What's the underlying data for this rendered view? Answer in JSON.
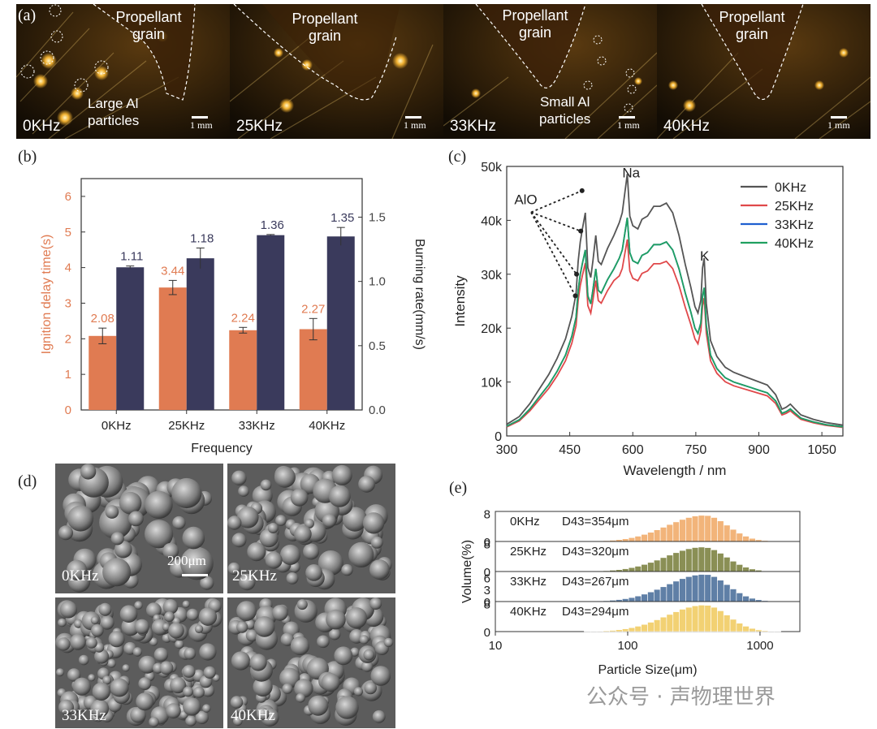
{
  "figure": {
    "panel_a": {
      "label": "(a)",
      "photos": [
        {
          "frequency": "0KHz",
          "grain": "Propellant\ngrain",
          "annotation": "Large Al\nparticles",
          "scale": "1 mm"
        },
        {
          "frequency": "25KHz",
          "grain": "Propellant\ngrain",
          "annotation": "",
          "scale": "1 mm"
        },
        {
          "frequency": "33KHz",
          "grain": "Propellant\ngrain",
          "annotation": "Small Al\nparticles",
          "scale": "1 mm"
        },
        {
          "frequency": "40KHz",
          "grain": "Propellant\ngrain",
          "annotation": "",
          "scale": "1 mm"
        }
      ]
    },
    "panel_d": {
      "label": "(d)",
      "images": [
        {
          "frequency": "0KHz",
          "scale": "200μm"
        },
        {
          "frequency": "25KHz",
          "scale": ""
        },
        {
          "frequency": "33KHz",
          "scale": ""
        },
        {
          "frequency": "40KHz",
          "scale": ""
        }
      ]
    },
    "watermark": {
      "source": "公众号 · 声物理世界"
    },
    "colors": {
      "orange": "#e07b52",
      "navy": "#3a3a5c",
      "gray": "#555555",
      "red": "#e0484a",
      "blue": "#1f5fd0",
      "green": "#20a060"
    }
  },
  "chart_data": [
    {
      "id": "b",
      "label": "(b)",
      "type": "bar",
      "categories": [
        "0KHz",
        "25KHz",
        "33KHz",
        "40KHz"
      ],
      "xlabel": "Frequency",
      "series": [
        {
          "name": "Ignition delay time(s)",
          "axis": "left",
          "color": "#e07b52",
          "values": [
            2.08,
            3.44,
            2.24,
            2.27
          ],
          "errors": [
            0.22,
            0.2,
            0.08,
            0.3
          ],
          "value_labels": [
            "2.08",
            "3.44",
            "2.24",
            "2.27"
          ]
        },
        {
          "name": "Burning rate(mm/s)",
          "axis": "right",
          "color": "#3a3a5c",
          "values": [
            1.11,
            1.18,
            1.36,
            1.35
          ],
          "errors": [
            0.01,
            0.08,
            0.005,
            0.07
          ],
          "value_labels": [
            "1.11",
            "1.18",
            "1.36",
            "1.35"
          ]
        }
      ],
      "ylabel_left": "Ignition delay time(s)",
      "ylim_left": [
        0,
        6.5
      ],
      "yticks_left": [
        "0",
        "1",
        "2",
        "3",
        "4",
        "5",
        "6"
      ],
      "ylabel_right": "Burning rate(mm/s)",
      "ylim_right": [
        0,
        1.8
      ],
      "yticks_right": [
        "0.0",
        "0.5",
        "1.0",
        "1.5"
      ]
    },
    {
      "id": "c",
      "label": "(c)",
      "type": "line",
      "xlabel": "Wavelength / nm",
      "ylabel": "Intensity",
      "xlim": [
        300,
        1100
      ],
      "ylim": [
        0,
        50000
      ],
      "xticks": [
        "300",
        "450",
        "600",
        "750",
        "900",
        "1050"
      ],
      "yticks": [
        "0",
        "10k",
        "20k",
        "30k",
        "40k",
        "50k"
      ],
      "annotations": [
        {
          "text": "AlO",
          "x": 318,
          "y": 43000
        },
        {
          "text": "Na",
          "x": 575,
          "y": 48000
        },
        {
          "text": "K",
          "x": 760,
          "y": 32500
        }
      ],
      "series": [
        {
          "name": "0KHz",
          "color": "#555555",
          "peak_scale": 1.2
        },
        {
          "name": "25KHz",
          "color": "#e0484a",
          "peak_scale": 0.92
        },
        {
          "name": "33KHz",
          "color": "#1f5fd0",
          "peak_scale": 1.0
        },
        {
          "name": "40KHz",
          "color": "#20a060",
          "peak_scale": 1.0
        }
      ],
      "shape_points": [
        [
          300,
          1800
        ],
        [
          330,
          3000
        ],
        [
          355,
          5000
        ],
        [
          380,
          7500
        ],
        [
          400,
          9500
        ],
        [
          420,
          12000
        ],
        [
          440,
          15000
        ],
        [
          455,
          18500
        ],
        [
          465,
          22000
        ],
        [
          470,
          27000
        ],
        [
          475,
          30000
        ],
        [
          480,
          32000
        ],
        [
          487,
          34500
        ],
        [
          493,
          26000
        ],
        [
          500,
          24500
        ],
        [
          505,
          27000
        ],
        [
          512,
          31000
        ],
        [
          518,
          27000
        ],
        [
          525,
          26500
        ],
        [
          540,
          29000
        ],
        [
          555,
          31000
        ],
        [
          568,
          33000
        ],
        [
          575,
          34500
        ],
        [
          582,
          38000
        ],
        [
          587,
          40500
        ],
        [
          593,
          34000
        ],
        [
          600,
          32500
        ],
        [
          612,
          32000
        ],
        [
          622,
          33500
        ],
        [
          635,
          34000
        ],
        [
          650,
          35500
        ],
        [
          665,
          35500
        ],
        [
          680,
          36000
        ],
        [
          695,
          34500
        ],
        [
          710,
          31000
        ],
        [
          725,
          26500
        ],
        [
          738,
          23000
        ],
        [
          748,
          20000
        ],
        [
          755,
          19000
        ],
        [
          762,
          21000
        ],
        [
          766,
          26000
        ],
        [
          770,
          27500
        ],
        [
          775,
          20500
        ],
        [
          785,
          15000
        ],
        [
          800,
          12500
        ],
        [
          820,
          10800
        ],
        [
          840,
          10000
        ],
        [
          860,
          9500
        ],
        [
          880,
          9000
        ],
        [
          900,
          8500
        ],
        [
          920,
          8000
        ],
        [
          940,
          6500
        ],
        [
          955,
          4200
        ],
        [
          965,
          4500
        ],
        [
          975,
          5000
        ],
        [
          985,
          4300
        ],
        [
          1000,
          3300
        ],
        [
          1030,
          2600
        ],
        [
          1060,
          2100
        ],
        [
          1100,
          1700
        ]
      ]
    },
    {
      "id": "e",
      "label": "(e)",
      "type": "bar",
      "xlabel": "Particle Size(μm)",
      "ylabel": "Volume(%)",
      "xscale": "log",
      "xlim": [
        10,
        2000
      ],
      "xticks": [
        "10",
        "100",
        "1000"
      ],
      "series": [
        {
          "name": "0KHz",
          "d43_label": "D43=354μm",
          "color": "#f2b47a",
          "peak_x": 380,
          "peak_y": 7.5,
          "ymax": 8.6,
          "yticks": [
            "0",
            "8"
          ]
        },
        {
          "name": "25KHz",
          "d43_label": "D43=320μm",
          "color": "#8a8f55",
          "peak_x": 370,
          "peak_y": 7.0,
          "ymax": 8.6,
          "yticks": [
            "0",
            "8"
          ]
        },
        {
          "name": "33KHz",
          "d43_label": "D43=267μm",
          "color": "#5f7fa6",
          "peak_x": 380,
          "peak_y": 6.8,
          "ymax": 7.5,
          "yticks": [
            "0",
            "3",
            "6"
          ]
        },
        {
          "name": "40KHz",
          "d43_label": "D43=294μm",
          "color": "#f2d173",
          "peak_x": 380,
          "peak_y": 7.6,
          "ymax": 8.6,
          "yticks": [
            "0",
            "8"
          ]
        }
      ]
    }
  ]
}
